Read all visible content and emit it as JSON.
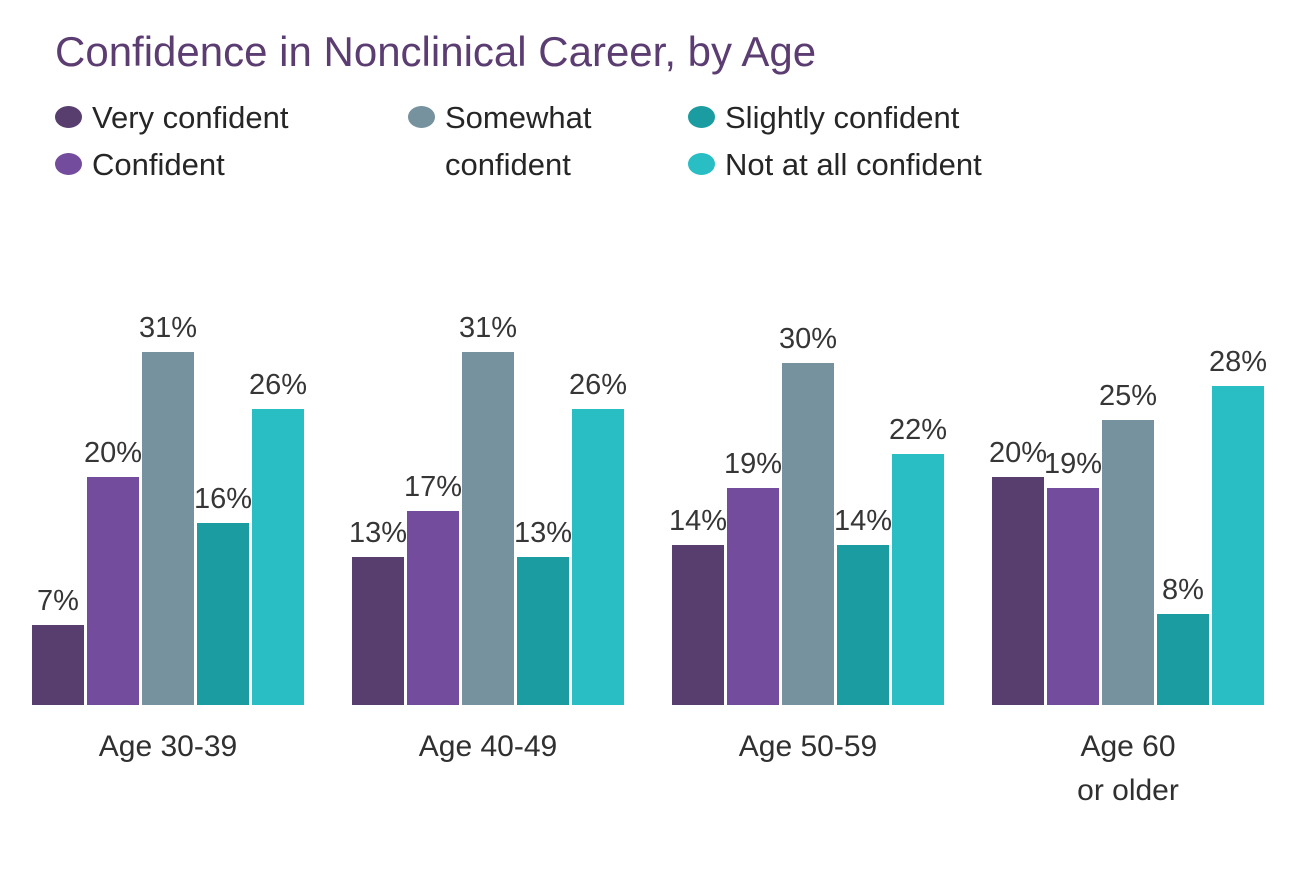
{
  "title": {
    "text": "Confidence in Nonclinical Career, by Age",
    "color": "#5C3D72"
  },
  "legend": {
    "position": "top",
    "columns": [
      {
        "items": [
          {
            "label": "Very confident",
            "color": "#583D6F"
          },
          {
            "label": "Confident",
            "color": "#744C9E"
          }
        ]
      },
      {
        "items": [
          {
            "label": "Somewhat\nconfident",
            "color": "#76929E"
          }
        ]
      },
      {
        "items": [
          {
            "label": "Slightly confident",
            "color": "#1A9CA0"
          },
          {
            "label": "Not at all confident",
            "color": "#28BEC3"
          }
        ]
      }
    ]
  },
  "chart_data": {
    "type": "bar",
    "title": "Confidence in Nonclinical Career, by Age",
    "categories": [
      "Age 30-39",
      "Age 40-49",
      "Age 50-59",
      "Age 60\nor older"
    ],
    "series": [
      {
        "name": "Very confident",
        "color": "#583D6F",
        "values": [
          7,
          13,
          14,
          20
        ]
      },
      {
        "name": "Confident",
        "color": "#744C9E",
        "values": [
          20,
          17,
          19,
          19
        ]
      },
      {
        "name": "Somewhat confident",
        "color": "#76929E",
        "values": [
          31,
          31,
          30,
          25
        ]
      },
      {
        "name": "Slightly confident",
        "color": "#1A9CA0",
        "values": [
          16,
          13,
          14,
          8
        ]
      },
      {
        "name": "Not at all confident",
        "color": "#28BEC3",
        "values": [
          26,
          26,
          22,
          28
        ]
      }
    ],
    "value_suffix": "%",
    "xlabel": "",
    "ylabel": "",
    "ylim": [
      0,
      33
    ],
    "grid": false,
    "data_labels": true,
    "legend_position": "top"
  }
}
